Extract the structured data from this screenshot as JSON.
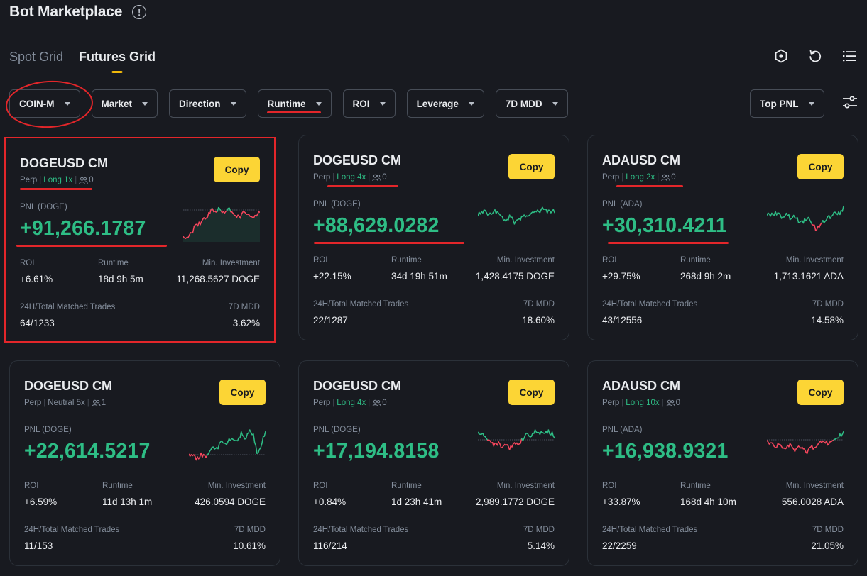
{
  "header": {
    "title": "Bot Marketplace",
    "info_icon": "info-circle-icon"
  },
  "tabs": [
    {
      "label": "Spot Grid"
    },
    {
      "label": "Futures Grid"
    }
  ],
  "toolbar_icons": [
    "bot-hexagon-icon",
    "refresh-icon",
    "list-icon"
  ],
  "filters": [
    {
      "label": "COIN-M"
    },
    {
      "label": "Market"
    },
    {
      "label": "Direction"
    },
    {
      "label": "Runtime"
    },
    {
      "label": "ROI"
    },
    {
      "label": "Leverage"
    },
    {
      "label": "7D MDD"
    }
  ],
  "sort": {
    "label": "Top PNL"
  },
  "labels": {
    "perp": "Perp",
    "copy": "Copy",
    "roi": "ROI",
    "runtime": "Runtime",
    "min_investment": "Min. Investment",
    "trades": "24H/Total Matched Trades",
    "mdd": "7D MDD"
  },
  "colors": {
    "accent": "#fcd535",
    "positive": "#2ebd85",
    "negative": "#f6465d",
    "annotation": "#e3262a"
  },
  "cards": [
    {
      "symbol": "DOGEUSD CM",
      "direction": "Long 1x",
      "direction_color": "green",
      "followers": "0",
      "pnl_label": "PNL (DOGE)",
      "pnl": "+91,266.1787",
      "roi": "+6.61%",
      "runtime": "18d 9h 5m",
      "min_investment": "11,268.5627 DOGE",
      "trades": "64/1233",
      "mdd": "3.62%"
    },
    {
      "symbol": "DOGEUSD CM",
      "direction": "Long 4x",
      "direction_color": "green",
      "followers": "0",
      "pnl_label": "PNL (DOGE)",
      "pnl": "+88,629.0282",
      "roi": "+22.15%",
      "runtime": "34d 19h 51m",
      "min_investment": "1,428.4175 DOGE",
      "trades": "22/1287",
      "mdd": "18.60%"
    },
    {
      "symbol": "ADAUSD CM",
      "direction": "Long 2x",
      "direction_color": "green",
      "followers": "0",
      "pnl_label": "PNL (ADA)",
      "pnl": "+30,310.4211",
      "roi": "+29.75%",
      "runtime": "268d 9h 2m",
      "min_investment": "1,713.1621 ADA",
      "trades": "43/12556",
      "mdd": "14.58%"
    },
    {
      "symbol": "DOGEUSD CM",
      "direction": "Neutral 5x",
      "direction_color": "gray",
      "followers": "1",
      "pnl_label": "PNL (DOGE)",
      "pnl": "+22,614.5217",
      "roi": "+6.59%",
      "runtime": "11d 13h 1m",
      "min_investment": "426.0594 DOGE",
      "trades": "11/153",
      "mdd": "10.61%"
    },
    {
      "symbol": "DOGEUSD CM",
      "direction": "Long 4x",
      "direction_color": "green",
      "followers": "0",
      "pnl_label": "PNL (DOGE)",
      "pnl": "+17,194.8158",
      "roi": "+0.84%",
      "runtime": "1d 23h 41m",
      "min_investment": "2,989.1772 DOGE",
      "trades": "116/214",
      "mdd": "5.14%"
    },
    {
      "symbol": "ADAUSD CM",
      "direction": "Long 10x",
      "direction_color": "green",
      "followers": "0",
      "pnl_label": "PNL (ADA)",
      "pnl": "+16,938.9321",
      "roi": "+33.87%",
      "runtime": "168d 4h 10m",
      "min_investment": "556.0028 ADA",
      "trades": "22/2259",
      "mdd": "21.05%"
    }
  ]
}
